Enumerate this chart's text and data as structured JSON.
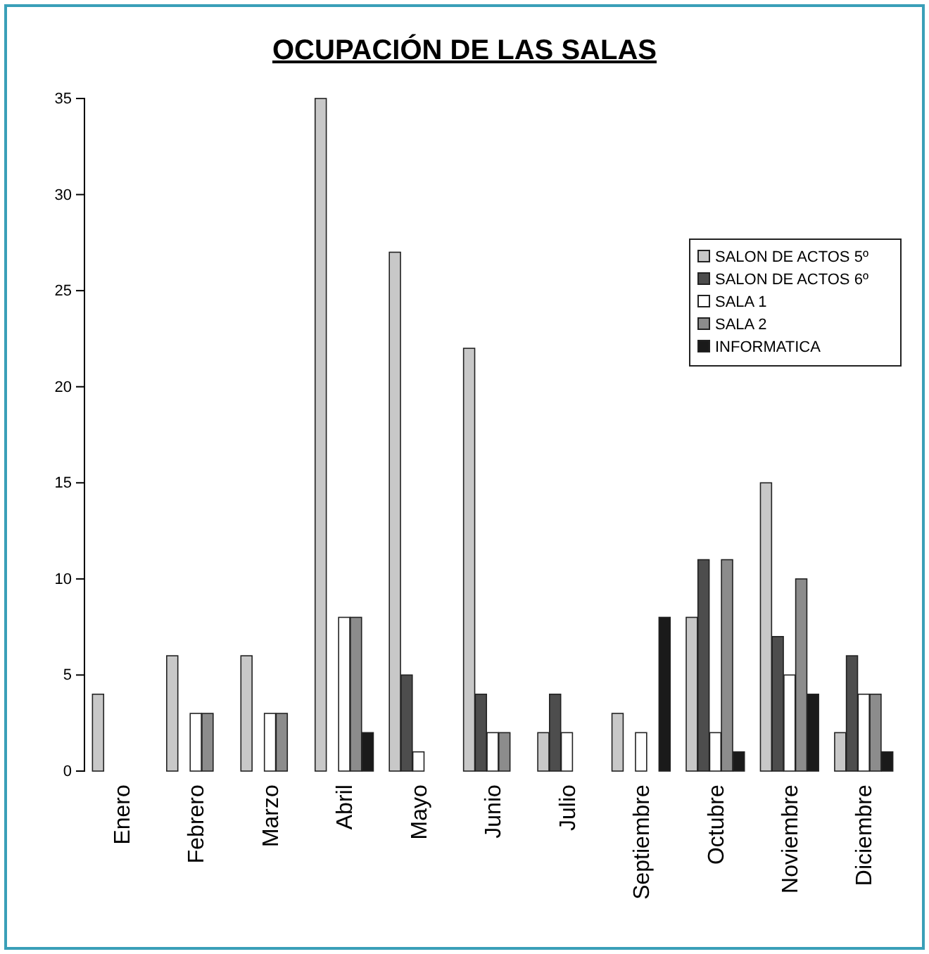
{
  "chart_data": {
    "type": "bar",
    "title": "OCUPACIÓN DE LAS SALAS",
    "categories": [
      "Enero",
      "Febrero",
      "Marzo",
      "Abril",
      "Mayo",
      "Junio",
      "Julio",
      "Septiembre",
      "Octubre",
      "Noviembre",
      "Diciembre"
    ],
    "series": [
      {
        "name": "SALON DE ACTOS 5º",
        "color": "#c8c8c8",
        "values": [
          4,
          6,
          6,
          35,
          27,
          22,
          2,
          3,
          8,
          15,
          2
        ]
      },
      {
        "name": "SALON DE ACTOS 6º",
        "color": "#4d4d4d",
        "values": [
          null,
          null,
          null,
          null,
          5,
          4,
          4,
          null,
          11,
          7,
          6
        ]
      },
      {
        "name": "SALA 1",
        "color": "#ffffff",
        "values": [
          null,
          3,
          3,
          8,
          1,
          2,
          2,
          2,
          2,
          5,
          4
        ]
      },
      {
        "name": "SALA 2",
        "color": "#8c8c8c",
        "values": [
          null,
          3,
          3,
          8,
          null,
          2,
          null,
          null,
          11,
          10,
          4
        ]
      },
      {
        "name": "INFORMATICA",
        "color": "#1a1a1a",
        "values": [
          null,
          null,
          null,
          2,
          null,
          null,
          null,
          8,
          1,
          4,
          1
        ]
      }
    ],
    "ylim": [
      0,
      35
    ],
    "yticks": [
      0,
      5,
      10,
      15,
      20,
      25,
      30,
      35
    ],
    "grid": false,
    "legend": "top right"
  }
}
